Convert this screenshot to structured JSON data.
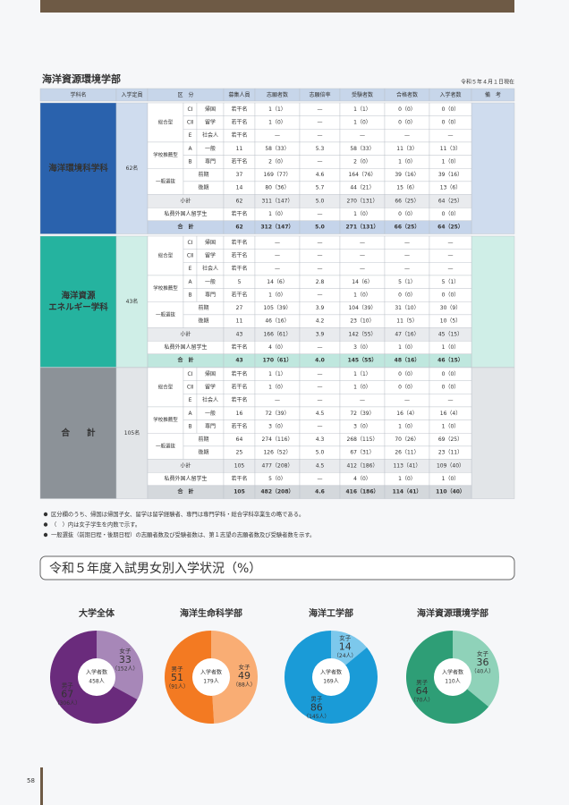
{
  "header": {
    "title": "海洋資源環境学部",
    "date": "令和５年４月１日現在"
  },
  "table": {
    "columns": [
      "学科名",
      "入学定員",
      "区　分",
      "募集人員",
      "志願者数",
      "志願倍率",
      "受験者数",
      "合格者数",
      "入学者数",
      "備　考"
    ],
    "blocks": [
      {
        "name": [
          "海洋環境科学科"
        ],
        "capacity": "62名",
        "groups": [
          "総合型",
          "学校推薦型",
          "一般選抜"
        ],
        "rows": [
          [
            "CⅠ",
            "帰国",
            "若干名",
            "1（1）",
            "—",
            "1（1）",
            "0（0）",
            "0（0）"
          ],
          [
            "CⅡ",
            "留学",
            "若干名",
            "1（0）",
            "—",
            "1（0）",
            "0（0）",
            "0（0）"
          ],
          [
            "E",
            "社会人",
            "若干名",
            "—",
            "—",
            "—",
            "—",
            "—"
          ],
          [
            "A",
            "一般",
            "11",
            "58（33）",
            "5.3",
            "58（33）",
            "11（3）",
            "11（3）"
          ],
          [
            "B",
            "専門",
            "若干名",
            "2（0）",
            "—",
            "2（0）",
            "1（0）",
            "1（0）"
          ],
          [
            "前期",
            "37",
            "169（77）",
            "4.6",
            "164（76）",
            "39（16）",
            "39（16）"
          ],
          [
            "後期",
            "14",
            "80（36）",
            "5.7",
            "44（21）",
            "15（6）",
            "13（6）"
          ],
          [
            "小計",
            "62",
            "311（147）",
            "5.0",
            "270（131）",
            "66（25）",
            "64（25）"
          ],
          [
            "私費外国人留学生",
            "若干名",
            "1（0）",
            "—",
            "1（0）",
            "0（0）",
            "0（0）"
          ],
          [
            "合　計",
            "62",
            "312（147）",
            "5.0",
            "271（131）",
            "66（25）",
            "64（25）"
          ]
        ]
      },
      {
        "name": [
          "海洋資源",
          "エネルギー学科"
        ],
        "capacity": "43名",
        "groups": [
          "総合型",
          "学校推薦型",
          "一般選抜"
        ],
        "rows": [
          [
            "CⅠ",
            "帰国",
            "若干名",
            "—",
            "—",
            "—",
            "—",
            "—"
          ],
          [
            "CⅡ",
            "留学",
            "若干名",
            "—",
            "—",
            "—",
            "—",
            "—"
          ],
          [
            "E",
            "社会人",
            "若干名",
            "—",
            "—",
            "—",
            "—",
            "—"
          ],
          [
            "A",
            "一般",
            "5",
            "14（6）",
            "2.8",
            "14（6）",
            "5（1）",
            "5（1）"
          ],
          [
            "B",
            "専門",
            "若干名",
            "1（0）",
            "—",
            "1（0）",
            "0（0）",
            "0（0）"
          ],
          [
            "前期",
            "27",
            "105（39）",
            "3.9",
            "104（39）",
            "31（10）",
            "30（9）"
          ],
          [
            "後期",
            "11",
            "46（16）",
            "4.2",
            "23（10）",
            "11（5）",
            "10（5）"
          ],
          [
            "小計",
            "43",
            "166（61）",
            "3.9",
            "142（55）",
            "47（16）",
            "45（15）"
          ],
          [
            "私費外国人留学生",
            "若干名",
            "4（0）",
            "—",
            "3（0）",
            "1（0）",
            "1（0）"
          ],
          [
            "合　計",
            "43",
            "170（61）",
            "4.0",
            "145（55）",
            "48（16）",
            "46（15）"
          ]
        ]
      },
      {
        "name": [
          "合　　計"
        ],
        "capacity": "105名",
        "groups": [
          "総合型",
          "学校推薦型",
          "一般選抜"
        ],
        "rows": [
          [
            "CⅠ",
            "帰国",
            "若干名",
            "1（1）",
            "—",
            "1（1）",
            "0（0）",
            "0（0）"
          ],
          [
            "CⅡ",
            "留学",
            "若干名",
            "1（0）",
            "—",
            "1（0）",
            "0（0）",
            "0（0）"
          ],
          [
            "E",
            "社会人",
            "若干名",
            "—",
            "—",
            "—",
            "—",
            "—"
          ],
          [
            "A",
            "一般",
            "16",
            "72（39）",
            "4.5",
            "72（39）",
            "16（4）",
            "16（4）"
          ],
          [
            "B",
            "専門",
            "若干名",
            "3（0）",
            "—",
            "3（0）",
            "1（0）",
            "1（0）"
          ],
          [
            "前期",
            "64",
            "274（116）",
            "4.3",
            "268（115）",
            "70（26）",
            "69（25）"
          ],
          [
            "後期",
            "25",
            "126（52）",
            "5.0",
            "67（31）",
            "26（11）",
            "23（11）"
          ],
          [
            "小計",
            "105",
            "477（208）",
            "4.5",
            "412（186）",
            "113（41）",
            "109（40）"
          ],
          [
            "私費外国人留学生",
            "若干名",
            "5（0）",
            "—",
            "4（0）",
            "1（0）",
            "1（0）"
          ],
          [
            "合　計",
            "105",
            "482（208）",
            "4.6",
            "416（186）",
            "114（41）",
            "110（40）"
          ]
        ]
      }
    ]
  },
  "notes": [
    "区分欄のうち、帰国は帰国子女、留学は留学経験者、専門は専門学科・総合学科卒業生の略である。",
    "（　）内は女子学生を内数で示す。",
    "一般選抜（前期日程・後期日程）の志願者数及び受験者数は、第１志望の志願者数及び受験者数を示す。"
  ],
  "section_title": "令和５年度入試男女別入学状況（%）",
  "pies": [
    {
      "title": "大学全体",
      "total_label": "入学者数",
      "total": "458人",
      "female": {
        "label": "女子",
        "percent": 33,
        "count": "（152人）",
        "color": "#a787b8"
      },
      "male": {
        "label": "男子",
        "percent": 67,
        "count": "（306人）",
        "color": "#6a2b7c"
      }
    },
    {
      "title": "海洋生命科学部",
      "total_label": "入学者数",
      "total": "179人",
      "female": {
        "label": "女子",
        "percent": 49,
        "count": "（88人）",
        "color": "#f9ad74"
      },
      "male": {
        "label": "男子",
        "percent": 51,
        "count": "（91人）",
        "color": "#f37a22"
      }
    },
    {
      "title": "海洋工学部",
      "total_label": "入学者数",
      "total": "169人",
      "female": {
        "label": "女子",
        "percent": 14,
        "count": "（24人）",
        "color": "#7cc8ec"
      },
      "male": {
        "label": "男子",
        "percent": 86,
        "count": "（145人）",
        "color": "#1a9bd7"
      }
    },
    {
      "title": "海洋資源環境学部",
      "total_label": "入学者数",
      "total": "110人",
      "female": {
        "label": "女子",
        "percent": 36,
        "count": "（40人）",
        "color": "#8fd2b9"
      },
      "male": {
        "label": "男子",
        "percent": 64,
        "count": "（70人）",
        "color": "#2e9e76"
      }
    }
  ],
  "page_number": "58"
}
